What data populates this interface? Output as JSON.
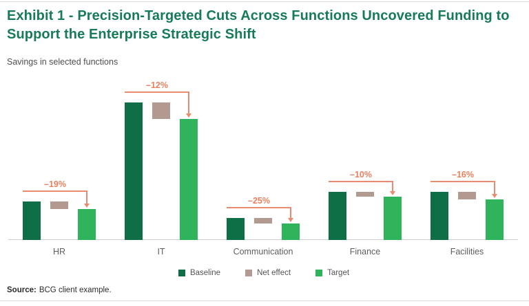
{
  "header": {
    "title": "Exhibit 1 - Precision-Targeted Cuts Across Functions Uncovered Funding to Support the Enterprise Strategic Shift",
    "subtitle": "Savings in selected functions"
  },
  "footer": {
    "source_label": "Source:",
    "source_text": "BCG client example."
  },
  "colors": {
    "title_green": "#177b57",
    "baseline_green": "#0e6f47",
    "target_green": "#2fb45c",
    "net_effect_tan": "#b29a90",
    "annotation_salmon": "#ea8a6e",
    "axis_gray": "#cfcfcf"
  },
  "chart_data": {
    "type": "bar",
    "title": "Savings in selected functions",
    "categories": [
      "HR",
      "IT",
      "Communication",
      "Finance",
      "Facilities"
    ],
    "series": [
      {
        "name": "Baseline",
        "color": "#0e6f47",
        "values": [
          28,
          100,
          16,
          35,
          35
        ]
      },
      {
        "name": "Net effect",
        "color": "#b29a90",
        "values": [
          5.3,
          12,
          4,
          3.5,
          5.6
        ]
      },
      {
        "name": "Target",
        "color": "#2fb45c",
        "values": [
          22.7,
          88,
          12,
          31.5,
          29.4
        ]
      }
    ],
    "delta_labels": [
      "–19%",
      "–12%",
      "–25%",
      "–10%",
      "–16%"
    ],
    "unit": "index, baseline IT = 100 (estimated from bar heights)",
    "xlabel": "",
    "ylabel": "",
    "ylim": [
      0,
      105
    ],
    "grid": false,
    "legend_position": "bottom",
    "notes": "Net effect bar floats between target level and baseline level; salmon arrow annotates percentage reduction from Baseline to Target."
  }
}
